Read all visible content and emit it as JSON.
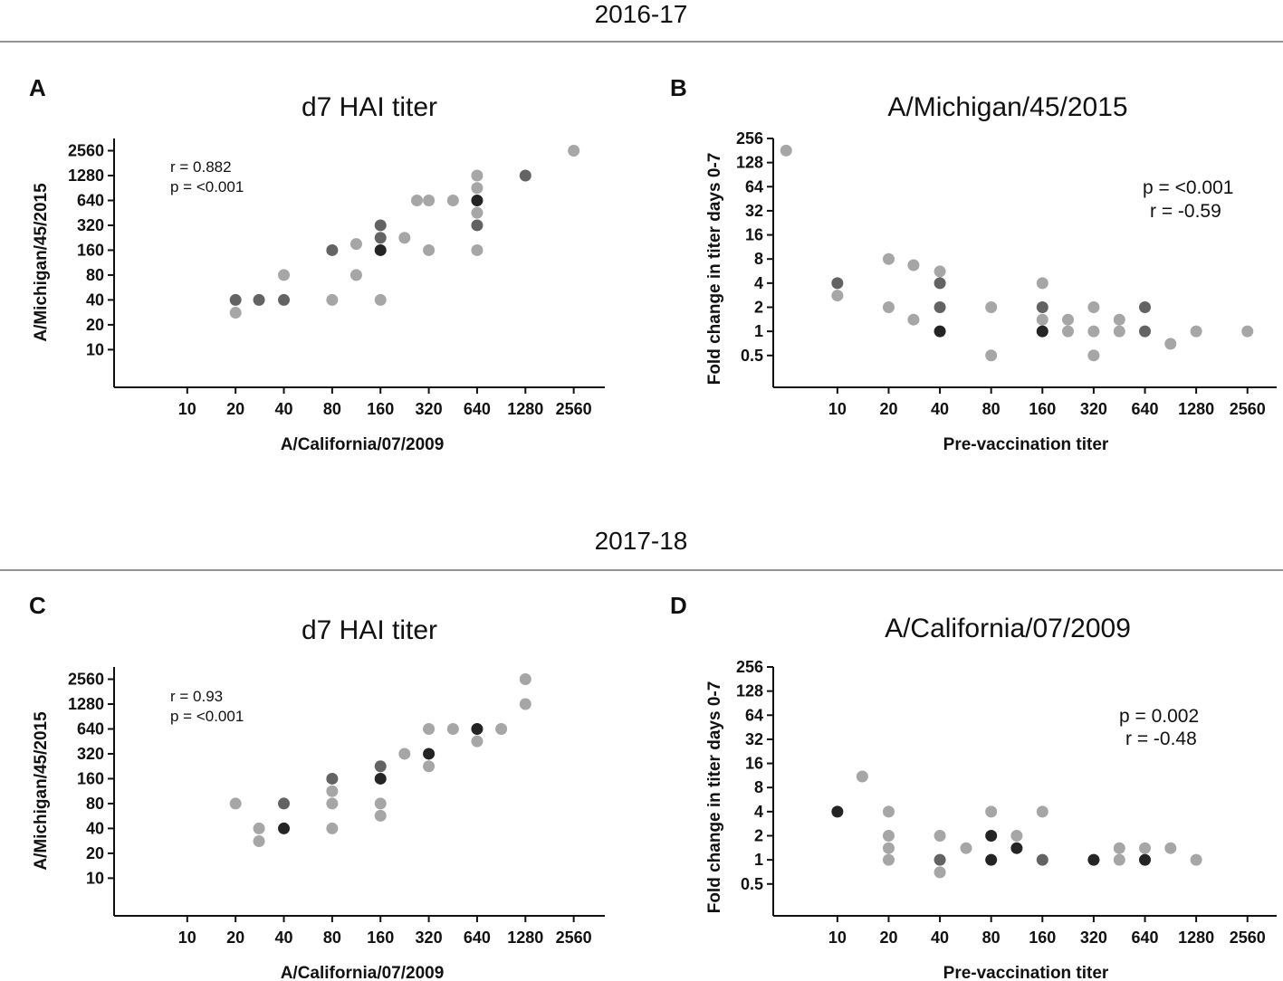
{
  "figure": {
    "sections": [
      {
        "title": "2016-17"
      },
      {
        "title": "2017-18"
      }
    ]
  },
  "colors": {
    "light": "#a6a6a6",
    "mid": "#636363",
    "dark": "#242424",
    "axis": "#111111",
    "divider": "#555555"
  },
  "chart_data": [
    {
      "panel": "A",
      "type": "scatter",
      "title": "d7 HAI titer",
      "xlabel": "A/California/07/2009",
      "ylabel": "A/Michigan/45/2015",
      "xscale": "log2",
      "yscale": "log2",
      "x_ticks": [
        "10",
        "20",
        "40",
        "80",
        "160",
        "320",
        "640",
        "1280",
        "2560"
      ],
      "y_ticks": [
        "10",
        "20",
        "40",
        "80",
        "160",
        "320",
        "640",
        "1280",
        "2560"
      ],
      "xlim": [
        3.5,
        4000
      ],
      "ylim": [
        3.5,
        3600
      ],
      "stats": [
        "r = 0.882",
        "p = <0.001"
      ],
      "points": [
        {
          "x": 20,
          "y": 28,
          "shade": "light"
        },
        {
          "x": 20,
          "y": 40,
          "shade": "mid"
        },
        {
          "x": 28,
          "y": 40,
          "shade": "mid"
        },
        {
          "x": 40,
          "y": 40,
          "shade": "mid"
        },
        {
          "x": 40,
          "y": 80,
          "shade": "light"
        },
        {
          "x": 80,
          "y": 40,
          "shade": "light"
        },
        {
          "x": 80,
          "y": 160,
          "shade": "mid"
        },
        {
          "x": 113,
          "y": 80,
          "shade": "light"
        },
        {
          "x": 113,
          "y": 190,
          "shade": "light"
        },
        {
          "x": 160,
          "y": 40,
          "shade": "light"
        },
        {
          "x": 160,
          "y": 160,
          "shade": "dark"
        },
        {
          "x": 160,
          "y": 226,
          "shade": "mid"
        },
        {
          "x": 160,
          "y": 320,
          "shade": "mid"
        },
        {
          "x": 226,
          "y": 226,
          "shade": "light"
        },
        {
          "x": 270,
          "y": 640,
          "shade": "light"
        },
        {
          "x": 320,
          "y": 160,
          "shade": "light"
        },
        {
          "x": 320,
          "y": 640,
          "shade": "light"
        },
        {
          "x": 453,
          "y": 640,
          "shade": "light"
        },
        {
          "x": 640,
          "y": 160,
          "shade": "light"
        },
        {
          "x": 640,
          "y": 320,
          "shade": "mid"
        },
        {
          "x": 640,
          "y": 453,
          "shade": "light"
        },
        {
          "x": 640,
          "y": 640,
          "shade": "dark"
        },
        {
          "x": 640,
          "y": 905,
          "shade": "light"
        },
        {
          "x": 640,
          "y": 1280,
          "shade": "light"
        },
        {
          "x": 1280,
          "y": 1280,
          "shade": "mid"
        },
        {
          "x": 2560,
          "y": 2560,
          "shade": "light"
        }
      ]
    },
    {
      "panel": "B",
      "type": "scatter",
      "title": "A/Michigan/45/2015",
      "xlabel": "Pre-vaccination titer",
      "ylabel": "Fold change in titer days 0-7",
      "xscale": "log2",
      "yscale": "log2",
      "x_ticks": [
        "10",
        "20",
        "40",
        "80",
        "160",
        "320",
        "640",
        "1280",
        "2560"
      ],
      "y_ticks": [
        "0.5",
        "1",
        "2",
        "4",
        "8",
        "16",
        "32",
        "64",
        "128",
        "256"
      ],
      "xlim": [
        4.2,
        3800
      ],
      "ylim": [
        0.2,
        256
      ],
      "stats": [
        "p = <0.001",
        "r = -0.59"
      ],
      "points": [
        {
          "x": 5,
          "y": 181,
          "shade": "light"
        },
        {
          "x": 10,
          "y": 4,
          "shade": "mid"
        },
        {
          "x": 10,
          "y": 2.8,
          "shade": "light"
        },
        {
          "x": 20,
          "y": 8,
          "shade": "light"
        },
        {
          "x": 20,
          "y": 2,
          "shade": "light"
        },
        {
          "x": 28,
          "y": 6.7,
          "shade": "light"
        },
        {
          "x": 28,
          "y": 1.4,
          "shade": "light"
        },
        {
          "x": 40,
          "y": 5.6,
          "shade": "light"
        },
        {
          "x": 40,
          "y": 4,
          "shade": "mid"
        },
        {
          "x": 40,
          "y": 2,
          "shade": "mid"
        },
        {
          "x": 40,
          "y": 1,
          "shade": "dark"
        },
        {
          "x": 80,
          "y": 2,
          "shade": "light"
        },
        {
          "x": 80,
          "y": 0.5,
          "shade": "light"
        },
        {
          "x": 160,
          "y": 4,
          "shade": "light"
        },
        {
          "x": 160,
          "y": 2,
          "shade": "mid"
        },
        {
          "x": 160,
          "y": 1.4,
          "shade": "light"
        },
        {
          "x": 160,
          "y": 1,
          "shade": "dark"
        },
        {
          "x": 226,
          "y": 1.4,
          "shade": "light"
        },
        {
          "x": 226,
          "y": 1,
          "shade": "light"
        },
        {
          "x": 320,
          "y": 2,
          "shade": "light"
        },
        {
          "x": 320,
          "y": 1,
          "shade": "light"
        },
        {
          "x": 320,
          "y": 0.5,
          "shade": "light"
        },
        {
          "x": 453,
          "y": 1.4,
          "shade": "light"
        },
        {
          "x": 453,
          "y": 1,
          "shade": "light"
        },
        {
          "x": 640,
          "y": 2,
          "shade": "mid"
        },
        {
          "x": 640,
          "y": 1,
          "shade": "mid"
        },
        {
          "x": 905,
          "y": 0.7,
          "shade": "light"
        },
        {
          "x": 1280,
          "y": 1,
          "shade": "light"
        },
        {
          "x": 2560,
          "y": 1,
          "shade": "light"
        }
      ]
    },
    {
      "panel": "C",
      "type": "scatter",
      "title": "d7 HAI titer",
      "xlabel": "A/California/07/2009",
      "ylabel": "A/Michigan/45/2015",
      "xscale": "log2",
      "yscale": "log2",
      "x_ticks": [
        "10",
        "20",
        "40",
        "80",
        "160",
        "320",
        "640",
        "1280",
        "2560"
      ],
      "y_ticks": [
        "10",
        "20",
        "40",
        "80",
        "160",
        "320",
        "640",
        "1280",
        "2560"
      ],
      "xlim": [
        3.5,
        4000
      ],
      "ylim": [
        3.5,
        3600
      ],
      "stats": [
        "r = 0.93",
        "p = <0.001"
      ],
      "points": [
        {
          "x": 20,
          "y": 80,
          "shade": "light"
        },
        {
          "x": 28,
          "y": 40,
          "shade": "light"
        },
        {
          "x": 28,
          "y": 28,
          "shade": "light"
        },
        {
          "x": 40,
          "y": 80,
          "shade": "mid"
        },
        {
          "x": 40,
          "y": 40,
          "shade": "dark"
        },
        {
          "x": 80,
          "y": 160,
          "shade": "mid"
        },
        {
          "x": 80,
          "y": 113,
          "shade": "light"
        },
        {
          "x": 80,
          "y": 80,
          "shade": "light"
        },
        {
          "x": 80,
          "y": 40,
          "shade": "light"
        },
        {
          "x": 160,
          "y": 226,
          "shade": "mid"
        },
        {
          "x": 160,
          "y": 160,
          "shade": "dark"
        },
        {
          "x": 160,
          "y": 80,
          "shade": "light"
        },
        {
          "x": 160,
          "y": 57,
          "shade": "light"
        },
        {
          "x": 226,
          "y": 320,
          "shade": "light"
        },
        {
          "x": 320,
          "y": 640,
          "shade": "light"
        },
        {
          "x": 320,
          "y": 320,
          "shade": "dark"
        },
        {
          "x": 320,
          "y": 226,
          "shade": "light"
        },
        {
          "x": 453,
          "y": 640,
          "shade": "light"
        },
        {
          "x": 640,
          "y": 640,
          "shade": "dark"
        },
        {
          "x": 640,
          "y": 453,
          "shade": "light"
        },
        {
          "x": 905,
          "y": 640,
          "shade": "light"
        },
        {
          "x": 1280,
          "y": 2560,
          "shade": "light"
        },
        {
          "x": 1280,
          "y": 1280,
          "shade": "light"
        }
      ]
    },
    {
      "panel": "D",
      "type": "scatter",
      "title": "A/California/07/2009",
      "xlabel": "Pre-vaccination titer",
      "ylabel": "Fold change in titer days 0-7",
      "xscale": "log2",
      "yscale": "log2",
      "x_ticks": [
        "10",
        "20",
        "40",
        "80",
        "160",
        "320",
        "640",
        "1280",
        "2560"
      ],
      "y_ticks": [
        "0.5",
        "1",
        "2",
        "4",
        "8",
        "16",
        "32",
        "64",
        "128",
        "256"
      ],
      "xlim": [
        4.2,
        3800
      ],
      "ylim": [
        0.2,
        256
      ],
      "stats": [
        "p = 0.002",
        "r = -0.48"
      ],
      "points": [
        {
          "x": 10,
          "y": 4,
          "shade": "dark"
        },
        {
          "x": 14,
          "y": 11,
          "shade": "light"
        },
        {
          "x": 20,
          "y": 4,
          "shade": "light"
        },
        {
          "x": 20,
          "y": 2,
          "shade": "light"
        },
        {
          "x": 20,
          "y": 1.4,
          "shade": "light"
        },
        {
          "x": 20,
          "y": 1,
          "shade": "light"
        },
        {
          "x": 40,
          "y": 2,
          "shade": "light"
        },
        {
          "x": 40,
          "y": 1,
          "shade": "mid"
        },
        {
          "x": 40,
          "y": 0.7,
          "shade": "light"
        },
        {
          "x": 57,
          "y": 1.4,
          "shade": "light"
        },
        {
          "x": 80,
          "y": 4,
          "shade": "light"
        },
        {
          "x": 80,
          "y": 2,
          "shade": "dark"
        },
        {
          "x": 80,
          "y": 1,
          "shade": "dark"
        },
        {
          "x": 113,
          "y": 2,
          "shade": "light"
        },
        {
          "x": 113,
          "y": 1.4,
          "shade": "dark"
        },
        {
          "x": 160,
          "y": 4,
          "shade": "light"
        },
        {
          "x": 160,
          "y": 1,
          "shade": "mid"
        },
        {
          "x": 320,
          "y": 1,
          "shade": "dark"
        },
        {
          "x": 453,
          "y": 1.4,
          "shade": "light"
        },
        {
          "x": 453,
          "y": 1,
          "shade": "light"
        },
        {
          "x": 640,
          "y": 1.4,
          "shade": "light"
        },
        {
          "x": 640,
          "y": 1,
          "shade": "dark"
        },
        {
          "x": 905,
          "y": 1.4,
          "shade": "light"
        },
        {
          "x": 1280,
          "y": 1,
          "shade": "light"
        }
      ]
    }
  ]
}
